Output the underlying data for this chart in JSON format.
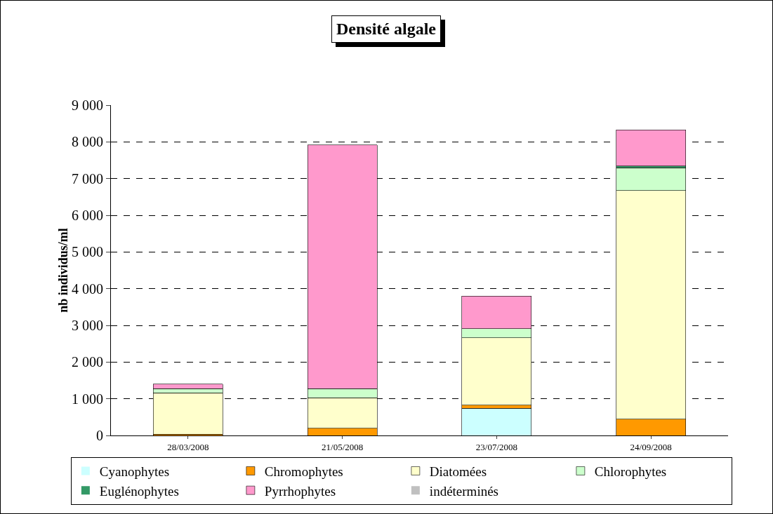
{
  "chart_data": {
    "type": "bar",
    "title": "Densité algale",
    "ylabel": "nb individus/ml",
    "stacked": true,
    "categories": [
      "28/03/2008",
      "21/05/2008",
      "23/07/2008",
      "24/09/2008"
    ],
    "series": [
      {
        "name": "Cyanophytes",
        "color": "#ccffff",
        "values": [
          0,
          0,
          740,
          0
        ]
      },
      {
        "name": "Chromophytes",
        "color": "#ff9900",
        "values": [
          30,
          200,
          90,
          440
        ]
      },
      {
        "name": "Diatomées",
        "color": "#ffffcc",
        "values": [
          1130,
          830,
          1830,
          6230
        ]
      },
      {
        "name": "Chlorophytes",
        "color": "#ccffcc",
        "values": [
          120,
          250,
          250,
          620
        ]
      },
      {
        "name": "Euglénophytes",
        "color": "#339966",
        "values": [
          0,
          0,
          0,
          50
        ]
      },
      {
        "name": "Pyrrhophytes",
        "color": "#ff99cc",
        "values": [
          120,
          6640,
          890,
          990
        ]
      },
      {
        "name": "indéterminés",
        "color": "#c0c0c0",
        "values": [
          0,
          0,
          0,
          0
        ]
      }
    ],
    "ylim": [
      0,
      9000
    ],
    "yticks": [
      0,
      {
        "value": 1000,
        "label": "1 000"
      },
      {
        "value": 2000,
        "label": "2 000"
      },
      {
        "value": 3000,
        "label": "3 000"
      },
      {
        "value": 4000,
        "label": "4 000"
      },
      {
        "value": 5000,
        "label": "5 000"
      },
      {
        "value": 6000,
        "label": "6 000"
      },
      {
        "value": 7000,
        "label": "7 000"
      },
      {
        "value": 8000,
        "label": "8 000"
      },
      {
        "value": 9000,
        "label": "9 000"
      }
    ],
    "grid": "y",
    "legend": "bottom"
  }
}
